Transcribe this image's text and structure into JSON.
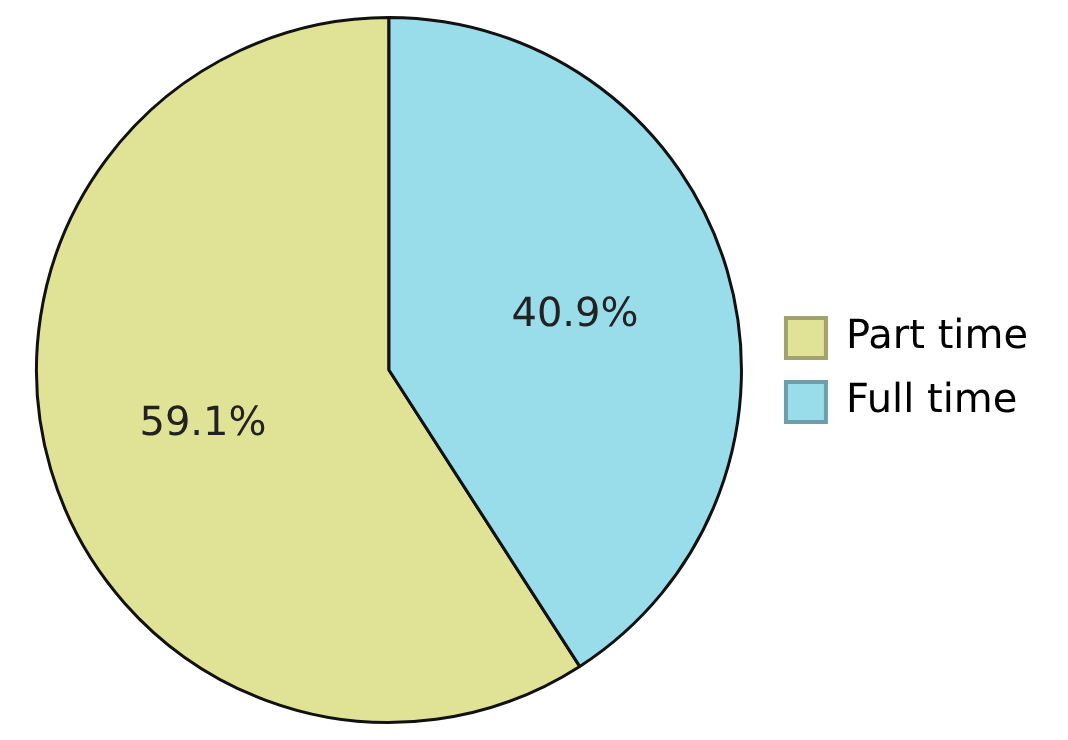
{
  "chart_data": {
    "type": "pie",
    "categories": [
      "Part time",
      "Full time"
    ],
    "values": [
      59.1,
      40.9
    ],
    "colors": [
      "#e0e396",
      "#99dcea"
    ],
    "value_labels": [
      "59.1%",
      "40.9%"
    ],
    "legend": "right"
  }
}
